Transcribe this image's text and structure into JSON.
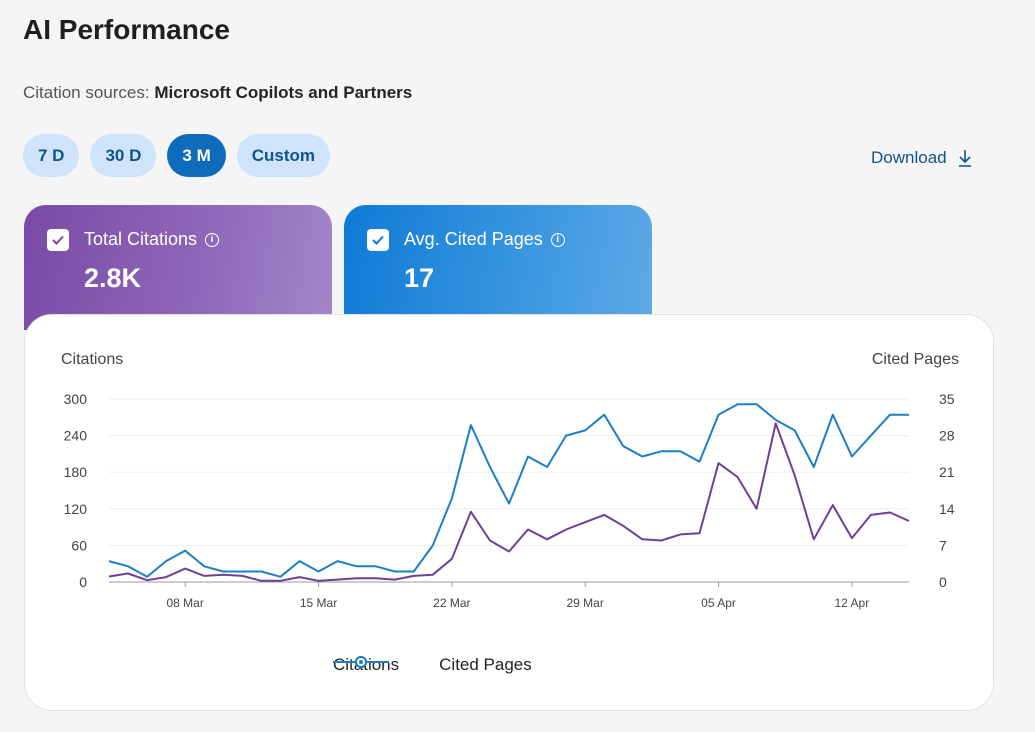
{
  "page": {
    "title": "AI Performance"
  },
  "sources": {
    "label": "Citation sources:",
    "value": "Microsoft Copilots and Partners"
  },
  "periods": [
    {
      "label": "7 D",
      "active": false
    },
    {
      "label": "30 D",
      "active": false
    },
    {
      "label": "3 M",
      "active": true
    },
    {
      "label": "Custom",
      "active": false
    }
  ],
  "download": {
    "label": "Download"
  },
  "cards": {
    "citations": {
      "label": "Total Citations",
      "value": "2.8K",
      "checked": true
    },
    "pages": {
      "label": "Avg. Cited Pages",
      "value": "17",
      "checked": true
    }
  },
  "colors": {
    "citations": "#6f3f98",
    "pages": "#1a7fc8",
    "accent": "#0f6cbd"
  },
  "chart_data": {
    "type": "line",
    "y_left_label": "Citations",
    "y_right_label": "Cited Pages",
    "y_left_ticks": [
      "300",
      "240",
      "180",
      "120",
      "60",
      "0"
    ],
    "y_right_ticks": [
      "35",
      "28",
      "21",
      "14",
      "7",
      "0"
    ],
    "ylim_left": [
      0,
      300
    ],
    "ylim_right": [
      0,
      35
    ],
    "x_ticks": [
      {
        "index": 4,
        "label": "08 Mar"
      },
      {
        "index": 11,
        "label": "15 Mar"
      },
      {
        "index": 18,
        "label": "22 Mar"
      },
      {
        "index": 25,
        "label": "29 Mar"
      },
      {
        "index": 32,
        "label": "05 Apr"
      },
      {
        "index": 39,
        "label": "12 Apr"
      }
    ],
    "x_count": 43,
    "series": [
      {
        "name": "Citations",
        "axis": "left",
        "values": [
          9,
          14,
          3,
          8,
          22,
          10,
          12,
          10,
          2,
          2,
          8,
          2,
          4,
          6,
          6,
          4,
          10,
          12,
          38,
          115,
          68,
          50,
          86,
          70,
          86,
          98,
          110,
          92,
          70,
          68,
          78,
          80,
          195,
          172,
          120,
          260,
          175,
          70,
          126,
          72,
          110,
          114,
          100
        ]
      },
      {
        "name": "Cited Pages",
        "axis": "right",
        "values": [
          4,
          3,
          1,
          4,
          6,
          3,
          2,
          2,
          2,
          1,
          4,
          2,
          4,
          3,
          3,
          2,
          2,
          7,
          16,
          30,
          22,
          15,
          24,
          22,
          28,
          29,
          32,
          26,
          24,
          25,
          25,
          23,
          32,
          34,
          34,
          31,
          29,
          22,
          32,
          24,
          28,
          32,
          32
        ]
      }
    ],
    "grid": true,
    "legend": "bottom-center"
  }
}
